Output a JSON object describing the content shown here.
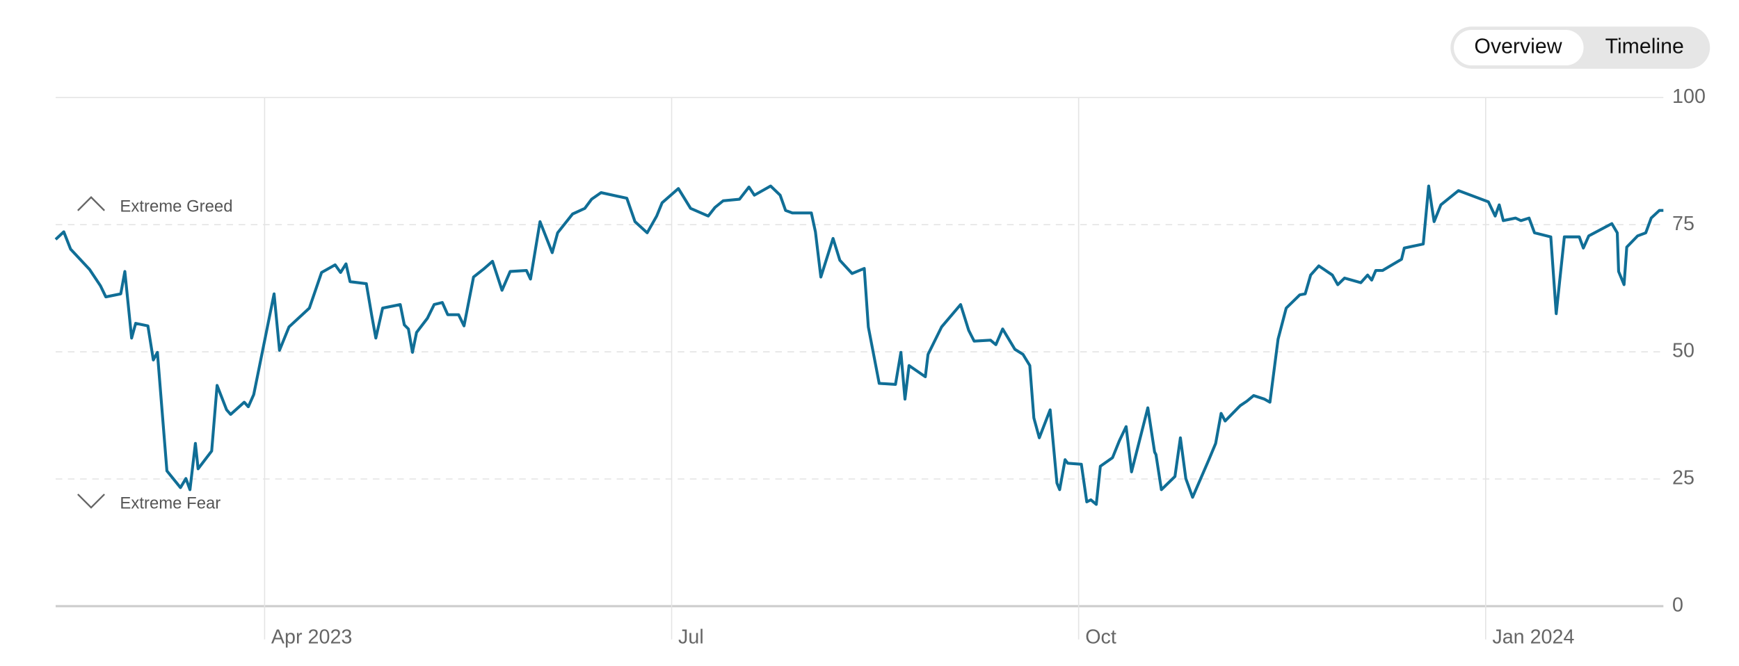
{
  "controls": [
    "Overview",
    "Timeline"
  ],
  "chart_data": {
    "type": "line",
    "annotations": [
      "Extreme Greed",
      "Extreme Fear"
    ],
    "xlim": [
      1.46,
      13.31
    ],
    "xticks": [
      {
        "value": 3,
        "label": "Apr 2023"
      },
      {
        "value": 6,
        "label": "Jul"
      },
      {
        "value": 9,
        "label": "Oct"
      },
      {
        "value": 12,
        "label": "Jan 2024"
      }
    ],
    "ylim": [
      0,
      100
    ],
    "yticks": [
      0,
      25,
      50,
      75,
      100
    ],
    "grid": true,
    "color": "#106e96",
    "x": [
      1.46,
      1.52,
      1.57,
      1.71,
      1.79,
      1.83,
      1.94,
      1.97,
      2.02,
      2.05,
      2.14,
      2.18,
      2.21,
      2.28,
      2.38,
      2.42,
      2.45,
      2.49,
      2.51,
      2.61,
      2.65,
      2.72,
      2.75,
      2.85,
      2.88,
      2.92,
      3.07,
      3.11,
      3.18,
      3.33,
      3.42,
      3.52,
      3.56,
      3.6,
      3.63,
      3.75,
      3.79,
      3.82,
      3.87,
      4.0,
      4.03,
      4.06,
      4.09,
      4.12,
      4.2,
      4.25,
      4.31,
      4.35,
      4.43,
      4.47,
      4.54,
      4.62,
      4.68,
      4.75,
      4.81,
      4.93,
      4.96,
      5.03,
      5.12,
      5.16,
      5.27,
      5.36,
      5.41,
      5.48,
      5.67,
      5.73,
      5.82,
      5.89,
      5.93,
      6.05,
      6.14,
      6.27,
      6.32,
      6.38,
      6.5,
      6.57,
      6.61,
      6.73,
      6.8,
      6.84,
      6.89,
      7.03,
      7.06,
      7.1,
      7.19,
      7.24,
      7.33,
      7.42,
      7.45,
      7.53,
      7.65,
      7.69,
      7.72,
      7.75,
      7.87,
      7.89,
      7.99,
      8.13,
      8.19,
      8.23,
      8.35,
      8.39,
      8.44,
      8.53,
      8.59,
      8.64,
      8.67,
      8.71,
      8.79,
      8.84,
      8.86,
      8.9,
      8.92,
      9.02,
      9.06,
      9.09,
      9.13,
      9.16,
      9.25,
      9.3,
      9.35,
      9.39,
      9.51,
      9.56,
      9.57,
      9.61,
      9.71,
      9.75,
      9.79,
      9.84,
      9.96,
      10.01,
      10.05,
      10.08,
      10.19,
      10.24,
      10.29,
      10.37,
      10.41,
      10.47,
      10.53,
      10.63,
      10.67,
      10.71,
      10.77,
      10.87,
      10.91,
      10.96,
      11.08,
      11.13,
      11.16,
      11.19,
      11.24,
      11.38,
      11.4,
      11.54,
      11.58,
      11.62,
      11.67,
      11.8,
      11.87,
      12.02,
      12.07,
      12.1,
      12.13,
      12.22,
      12.26,
      12.32,
      12.36,
      12.48,
      12.52,
      12.58,
      12.69,
      12.72,
      12.76,
      12.93,
      12.97,
      12.98,
      13.02,
      13.04,
      13.12,
      13.18,
      13.22,
      13.28,
      13.31
    ],
    "values": [
      72.1,
      73.6,
      70.2,
      66.2,
      63,
      60.8,
      61.4,
      65.8,
      52.7,
      55.6,
      55.1,
      48.4,
      49.9,
      26.6,
      23.3,
      25.1,
      22.9,
      32,
      27,
      30.5,
      43.4,
      38.6,
      37.7,
      40.1,
      39.2,
      41.6,
      61.4,
      50.3,
      54.9,
      58.6,
      65.6,
      67.1,
      65.6,
      67.3,
      63.8,
      63.4,
      57.1,
      52.7,
      58.6,
      59.3,
      55.3,
      54.5,
      49.9,
      53.8,
      56.6,
      59.3,
      59.7,
      57.3,
      57.3,
      55.1,
      64.7,
      66.4,
      67.8,
      62.1,
      65.8,
      66,
      64.3,
      75.6,
      69.5,
      73.4,
      77.1,
      78.2,
      80,
      81.3,
      80.2,
      75.6,
      73.4,
      76.7,
      79.3,
      82.1,
      78.2,
      76.7,
      78.4,
      79.7,
      80,
      82.4,
      80.8,
      82.6,
      80.8,
      77.8,
      77.3,
      77.3,
      73.6,
      64.7,
      72.3,
      68,
      65.4,
      66.4,
      54.9,
      43.8,
      43.6,
      49.9,
      40.7,
      47.3,
      45.1,
      49.5,
      54.9,
      59.3,
      54.2,
      52.1,
      52.3,
      51.4,
      54.5,
      50.5,
      49.5,
      47.3,
      37,
      33.1,
      38.6,
      24.2,
      22.9,
      28.8,
      28.1,
      27.9,
      20.5,
      20.9,
      20,
      27.5,
      29.2,
      32.5,
      35.3,
      26.4,
      39,
      30.3,
      29.8,
      22.9,
      25.5,
      33.1,
      25.1,
      21.4,
      28.8,
      32,
      37.9,
      36.4,
      39.4,
      40.3,
      41.4,
      40.7,
      40.1,
      52.5,
      58.6,
      61.2,
      61.4,
      65.1,
      66.9,
      65.1,
      63.2,
      64.5,
      63.6,
      65.1,
      64.1,
      66,
      66,
      68.2,
      70.4,
      71.2,
      82.6,
      75.6,
      78.9,
      81.7,
      81,
      79.5,
      76.7,
      78.9,
      75.8,
      76.3,
      75.8,
      76.3,
      73.4,
      72.6,
      57.5,
      72.6,
      72.6,
      70.4,
      72.8,
      75.2,
      73.4,
      65.8,
      63.2,
      70.6,
      72.8,
      73.4,
      76.3,
      77.8,
      77.8
    ]
  }
}
